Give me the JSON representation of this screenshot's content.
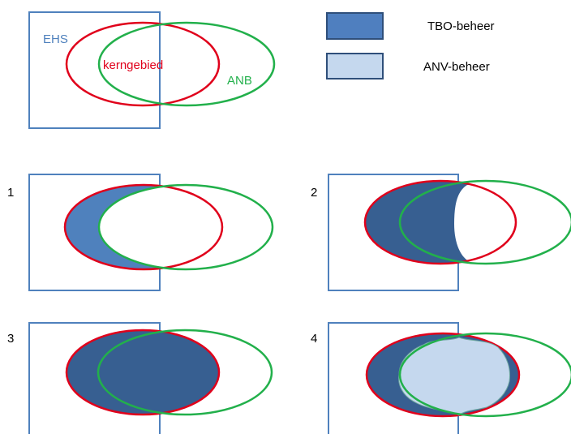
{
  "legend": [
    {
      "label": "TBO-beheer",
      "color": "#4f7fbf"
    },
    {
      "label": "ANV-beheer",
      "color": "#c5d8ee"
    }
  ],
  "key_diagram": {
    "square_label": "EHS",
    "red_ellipse_label": "kerngebied",
    "green_ellipse_label": "ANB"
  },
  "panels": [
    {
      "number": "1"
    },
    {
      "number": "2"
    },
    {
      "number": "3"
    },
    {
      "number": "4"
    }
  ],
  "colors": {
    "ehs_blue": "#4f81bd",
    "kern_red": "#e0001b",
    "anb_green": "#22b04b",
    "fill_dark": "#375f91",
    "fill_mid": "#4f81bd",
    "fill_light": "#c5d8ee",
    "legend_stroke": "#2f4f7a"
  }
}
